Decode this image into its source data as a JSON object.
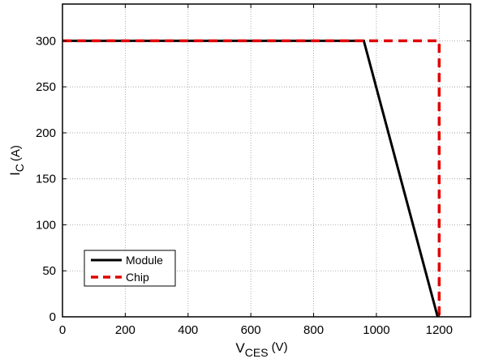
{
  "chart_data": {
    "type": "line",
    "xlabel": {
      "main": "V",
      "sub": "CES",
      "unit": "(V)"
    },
    "ylabel": {
      "main": "I",
      "sub": "C",
      "unit": "(A)"
    },
    "xlim": [
      0,
      1300
    ],
    "ylim": [
      0,
      340
    ],
    "xticks": [
      0,
      200,
      400,
      600,
      800,
      1000,
      1200
    ],
    "yticks": [
      0,
      50,
      100,
      150,
      200,
      250,
      300
    ],
    "grid": true,
    "legend_position": "bottom-left",
    "series": [
      {
        "name": "Module",
        "color": "#000000",
        "style": "solid",
        "x": [
          0,
          960,
          1195
        ],
        "y": [
          300,
          300,
          0
        ]
      },
      {
        "name": "Chip",
        "color": "#e00000",
        "style": "dashed",
        "x": [
          0,
          1200,
          1200
        ],
        "y": [
          300,
          300,
          0
        ]
      }
    ]
  }
}
